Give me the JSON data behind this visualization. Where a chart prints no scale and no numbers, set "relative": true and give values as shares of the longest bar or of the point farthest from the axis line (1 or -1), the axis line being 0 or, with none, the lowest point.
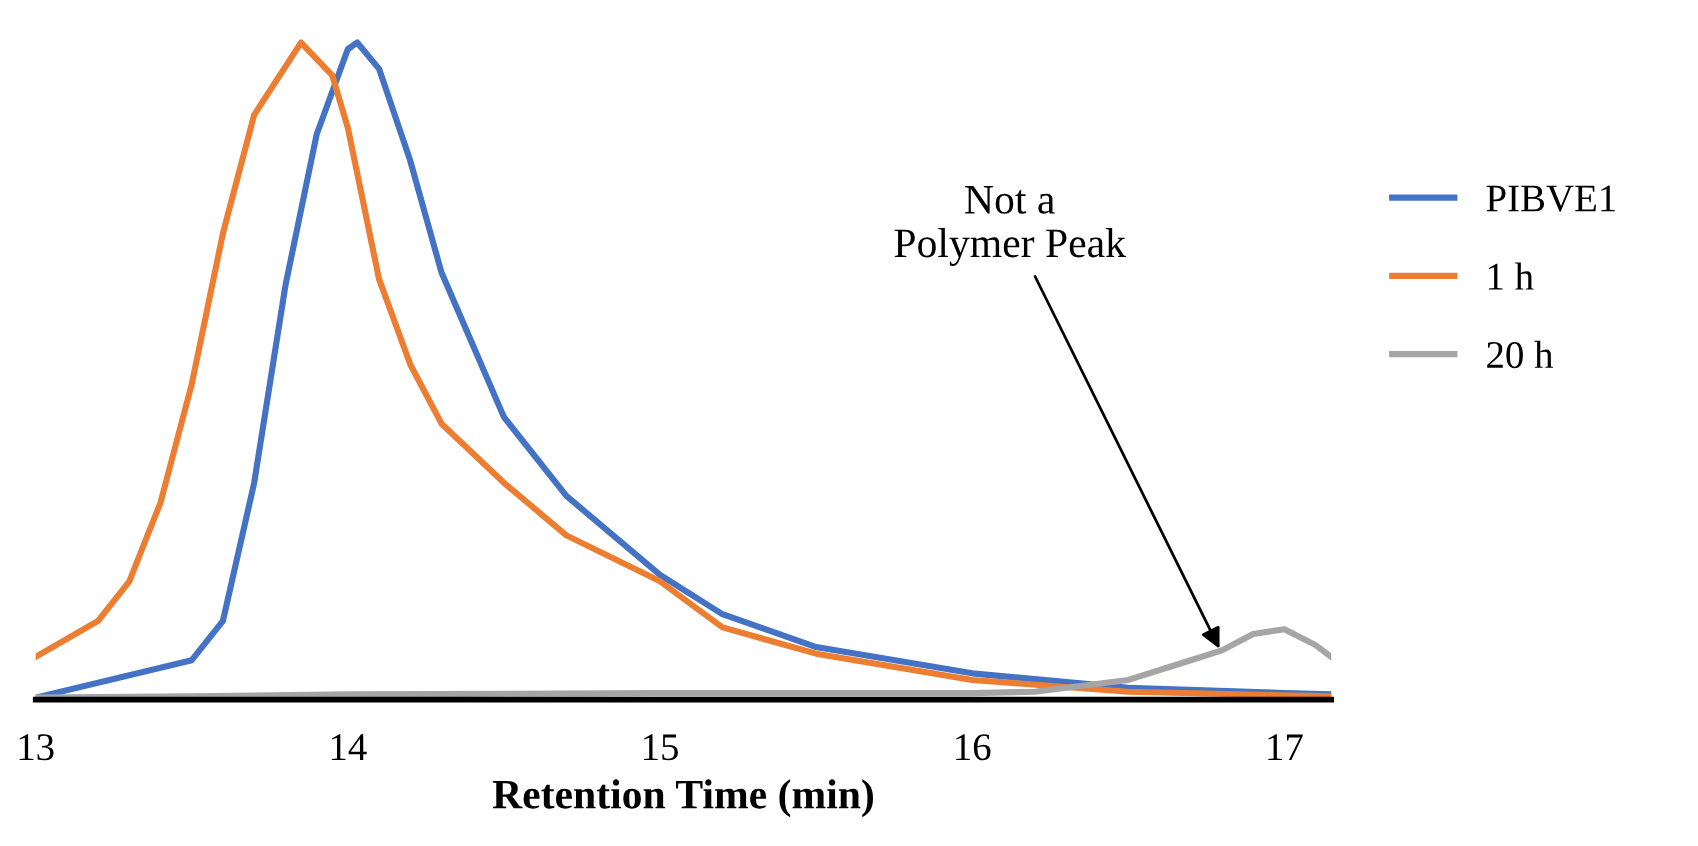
{
  "chart_data": {
    "type": "line",
    "xlabel": "Retention Time (min)",
    "xlim": [
      13,
      17.15
    ],
    "xticks": [
      13,
      14,
      15,
      16,
      17
    ],
    "relative": true,
    "legend": "right",
    "grid": false,
    "marker": "none",
    "line_style": "solid",
    "annotations": [
      {
        "text": "Not a\nPolymer Peak",
        "x": 16.8,
        "y": 0.07
      }
    ],
    "series": [
      {
        "name": "PIBVE1",
        "color": "#4472c4",
        "x": [
          13.0,
          13.5,
          13.6,
          13.7,
          13.8,
          13.9,
          14.0,
          14.03,
          14.1,
          14.2,
          14.3,
          14.4,
          14.5,
          14.7,
          15.0,
          15.2,
          15.5,
          16.0,
          16.5,
          17.0,
          17.15
        ],
        "values": [
          0.003,
          0.06,
          0.12,
          0.33,
          0.63,
          0.86,
          0.99,
          1.0,
          0.96,
          0.82,
          0.65,
          0.54,
          0.43,
          0.31,
          0.19,
          0.13,
          0.08,
          0.04,
          0.018,
          0.01,
          0.008
        ]
      },
      {
        "name": "1 h",
        "color": "#ed7d31",
        "x": [
          13.0,
          13.2,
          13.3,
          13.4,
          13.5,
          13.6,
          13.7,
          13.85,
          13.95,
          14.0,
          14.1,
          14.2,
          14.3,
          14.5,
          14.7,
          15.0,
          15.2,
          15.5,
          16.0,
          16.5,
          17.15
        ],
        "values": [
          0.065,
          0.12,
          0.18,
          0.3,
          0.48,
          0.71,
          0.89,
          1.0,
          0.95,
          0.87,
          0.64,
          0.51,
          0.42,
          0.33,
          0.25,
          0.18,
          0.11,
          0.07,
          0.03,
          0.012,
          0.005
        ]
      },
      {
        "name": "20 h",
        "color": "#a5a5a5",
        "x": [
          13.0,
          13.5,
          14.0,
          15.0,
          16.0,
          16.2,
          16.5,
          16.7,
          16.8,
          16.9,
          17.0,
          17.1,
          17.15
        ],
        "values": [
          0.003,
          0.005,
          0.008,
          0.01,
          0.01,
          0.012,
          0.03,
          0.06,
          0.075,
          0.1,
          0.107,
          0.083,
          0.065
        ]
      }
    ]
  }
}
